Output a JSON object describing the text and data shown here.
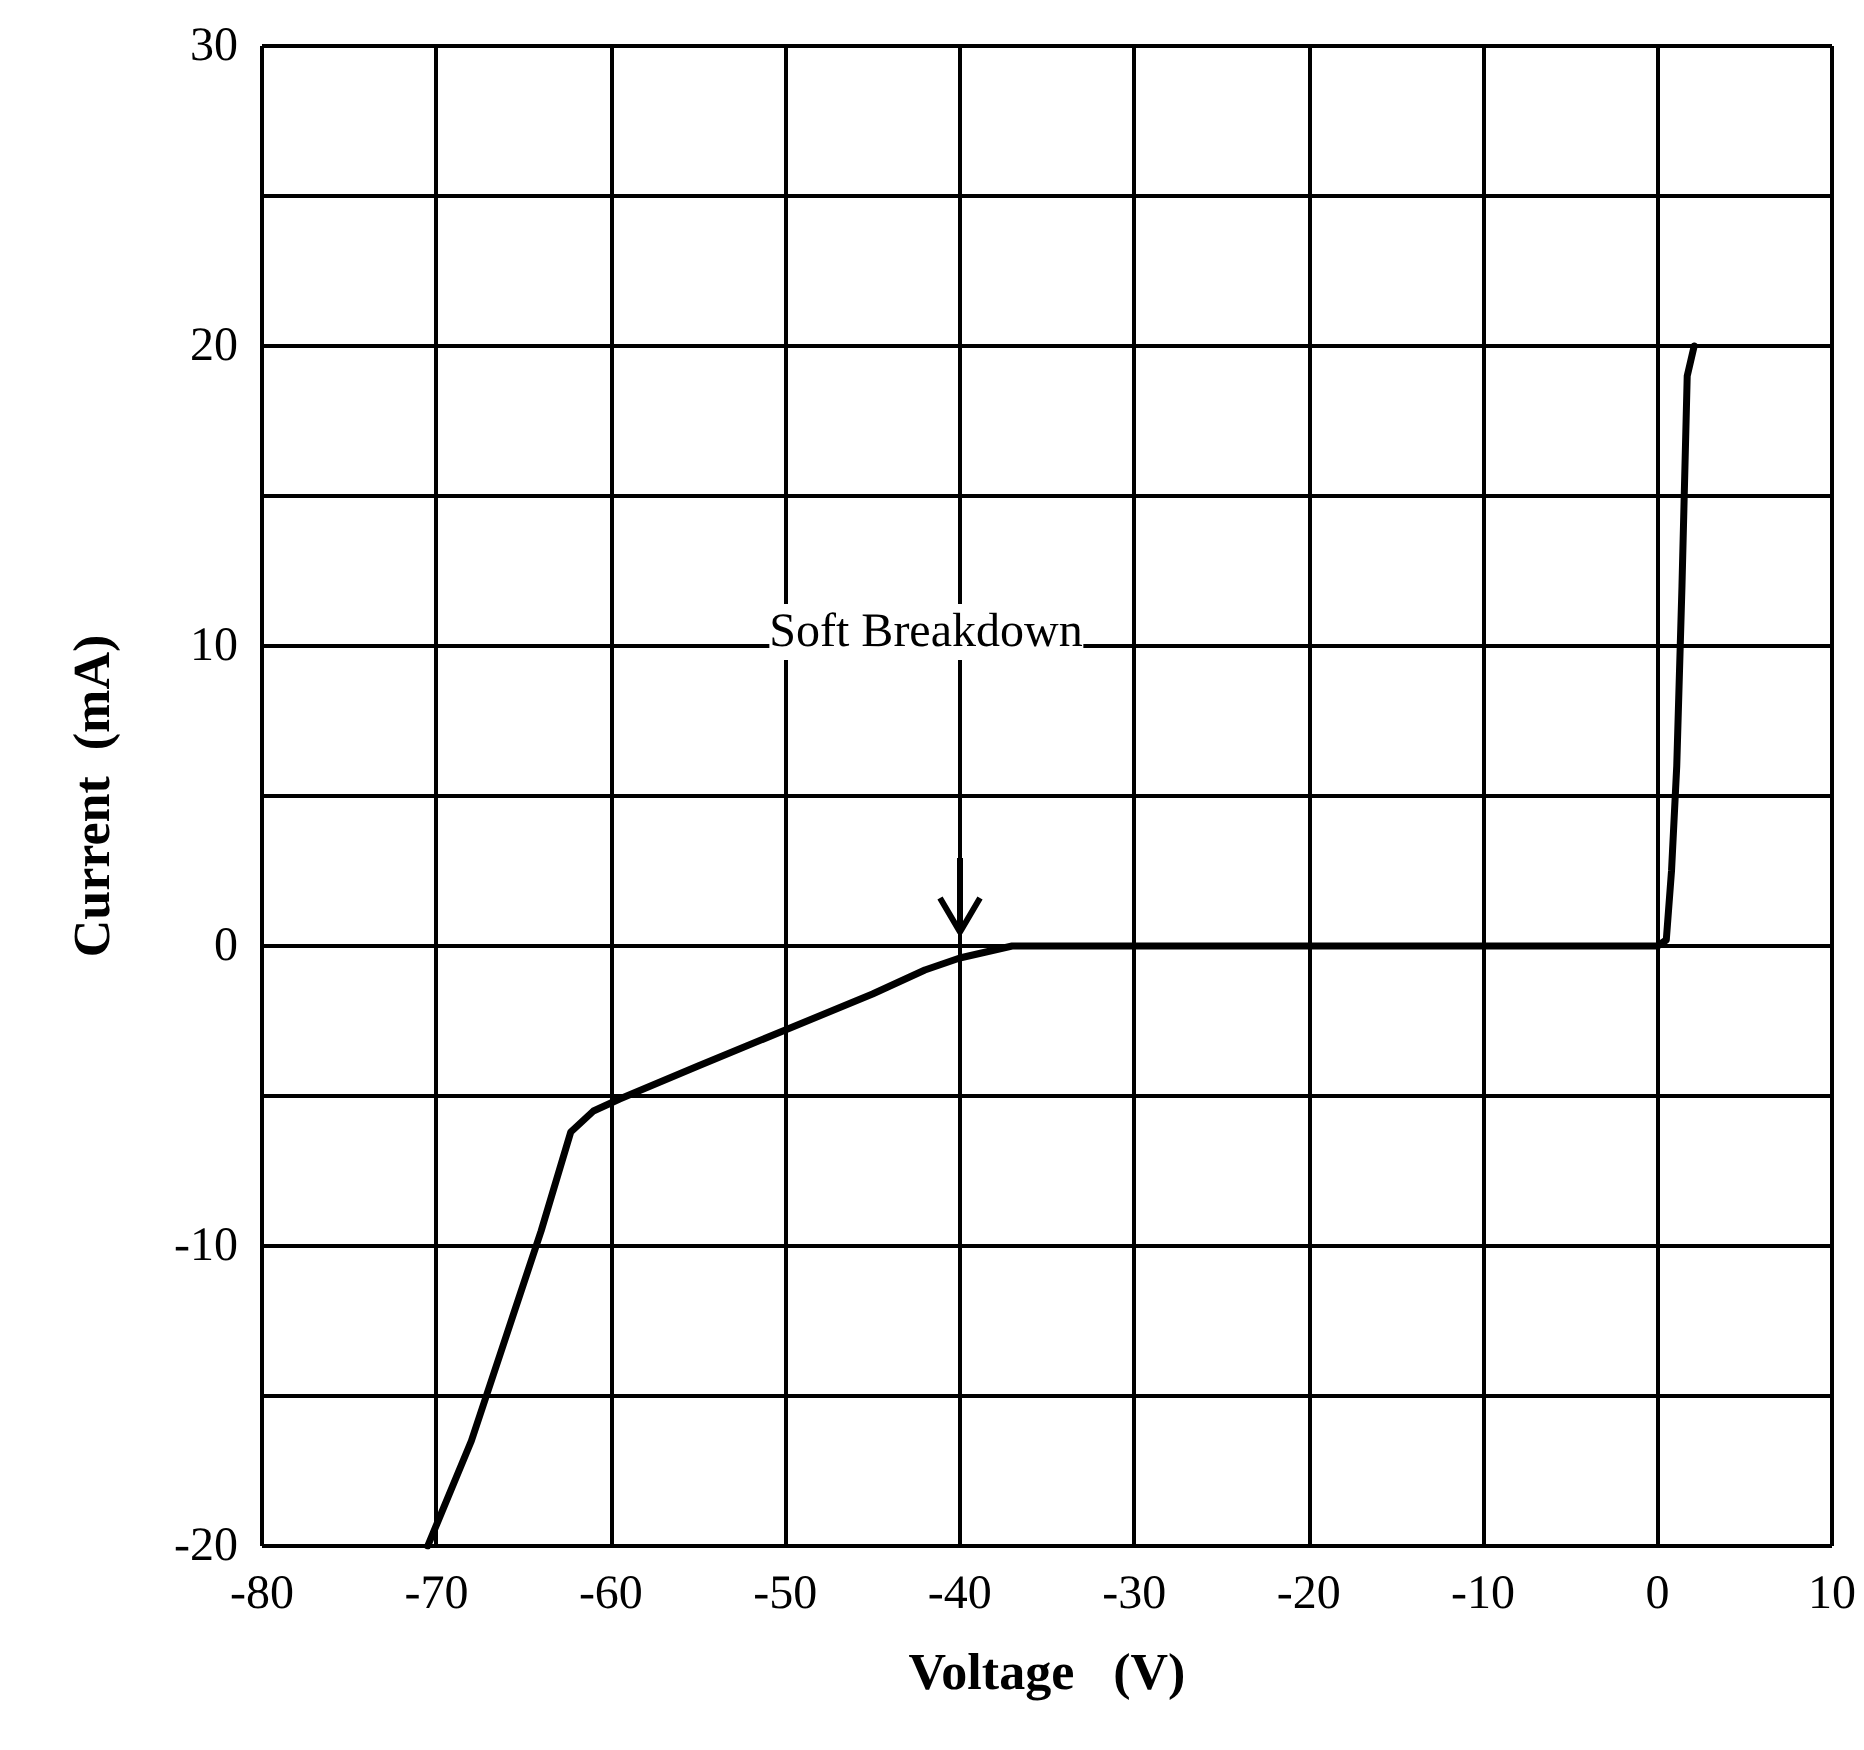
{
  "chart_data": {
    "type": "line",
    "xlabel": "Voltage   (V)",
    "ylabel": "Current  (mA)",
    "xlim": [
      -80,
      10
    ],
    "xticks": [
      -80,
      -70,
      -60,
      -50,
      -40,
      -30,
      -20,
      -10,
      0,
      10
    ],
    "ylim": [
      -20,
      30
    ],
    "yticks": [
      -20,
      {
        "value": -15,
        "label": null
      },
      -10,
      {
        "value": -5,
        "label": null
      },
      0,
      {
        "value": 5,
        "label": null
      },
      10,
      {
        "value": 15,
        "label": null
      },
      20,
      {
        "value": 25,
        "label": null
      },
      30
    ],
    "grid": true,
    "marker": "none",
    "line_style": "solid",
    "series": [
      {
        "color": "#000000",
        "x": [
          -70.5,
          -68,
          -66,
          -64,
          -62.3,
          -61,
          -59.5,
          -55,
          -50,
          -45,
          -42,
          -40,
          -38.5,
          -37,
          -30,
          -20,
          -10,
          0,
          0.5,
          0.8,
          1.1,
          1.4,
          1.7,
          2.1
        ],
        "values": [
          -20,
          -16.5,
          -13,
          -9.5,
          -6.2,
          -5.5,
          -5.1,
          -4,
          -2.8,
          -1.6,
          -0.8,
          -0.4,
          -0.2,
          0,
          0,
          0,
          0,
          0,
          0.2,
          2.5,
          6,
          12,
          19,
          20
        ]
      }
    ],
    "annotations": [
      "Soft Breakdown"
    ]
  }
}
